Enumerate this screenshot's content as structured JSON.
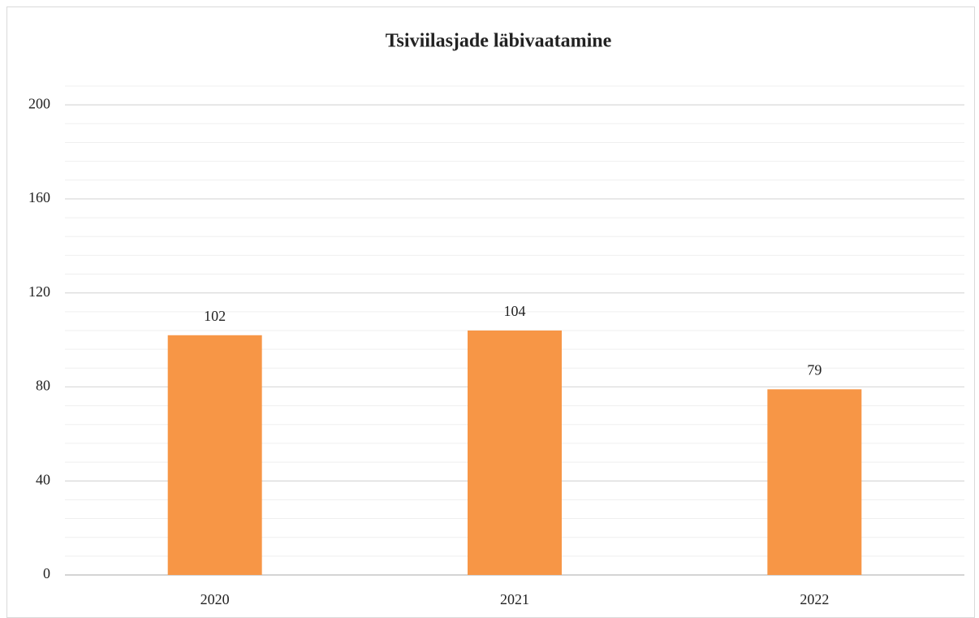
{
  "chart_data": {
    "type": "bar",
    "title": "Tsiviilasjade läbivaatamine",
    "categories": [
      "2020",
      "2021",
      "2022"
    ],
    "values": [
      102,
      104,
      79
    ],
    "color": "#f79646",
    "ylim": [
      0,
      208
    ],
    "yticks": [
      0,
      40,
      80,
      120,
      160,
      200
    ],
    "grid": true,
    "minor_grid_step": 8,
    "data_labels": true
  }
}
